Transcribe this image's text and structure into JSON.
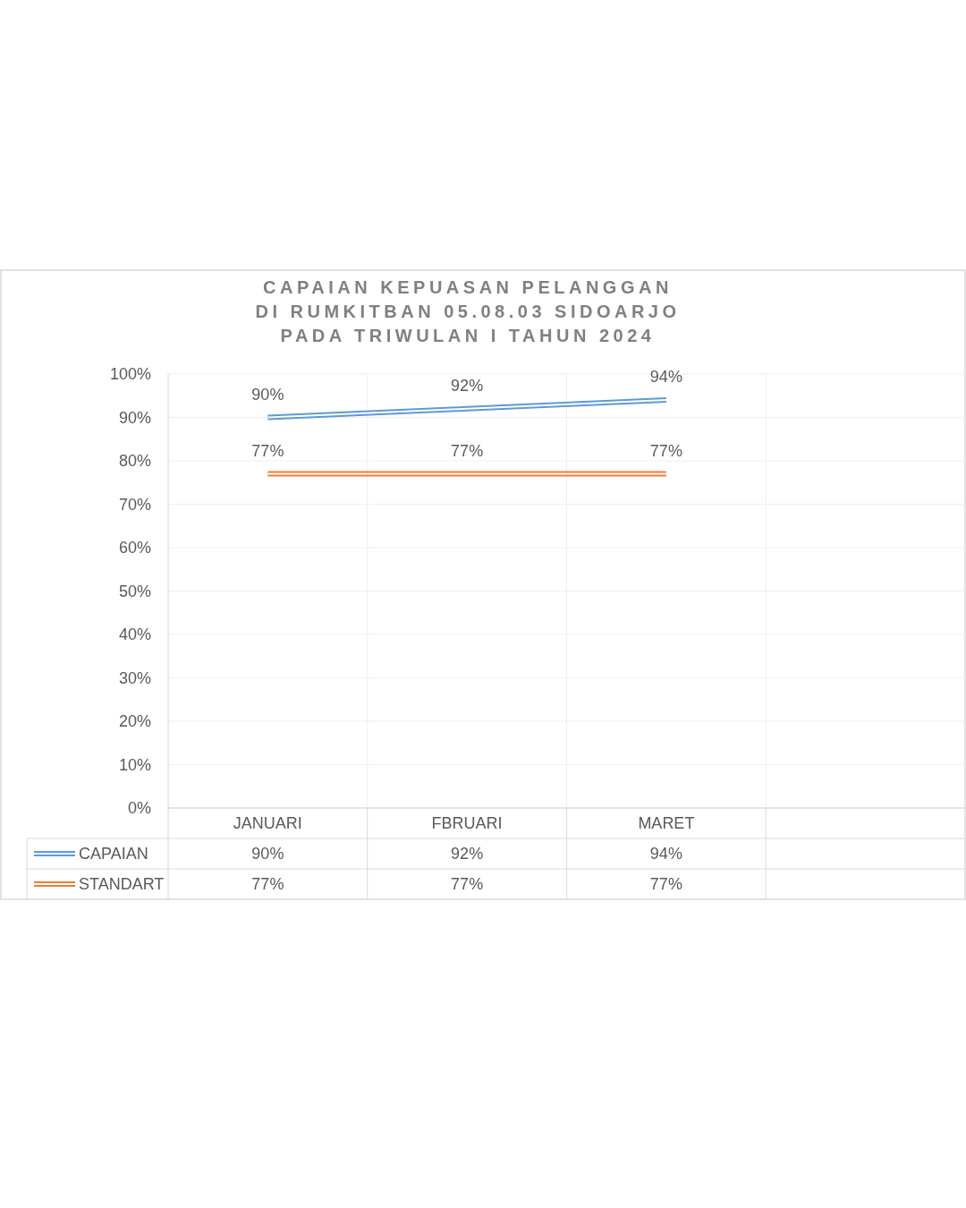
{
  "chart_data": {
    "type": "line",
    "title": "CAPAIAN KEPUASAN PELANGGAN\nDI RUMKITBAN 05.08.03 SIDOARJO\nPADA TRIWULAN I TAHUN 2024",
    "categories": [
      "JANUARI",
      "FBRUARI",
      "MARET",
      null
    ],
    "series": [
      {
        "name": "CAPAIAN",
        "color": "#5b9bd5",
        "values": [
          90,
          92,
          94,
          null
        ],
        "value_labels": [
          "90%",
          "92%",
          "94%",
          null
        ]
      },
      {
        "name": "STANDART",
        "color": "#ed7d31",
        "values": [
          77,
          77,
          77,
          null
        ],
        "value_labels": [
          "77%",
          "77%",
          "77%",
          null
        ]
      }
    ],
    "ylim": [
      0,
      100
    ],
    "yticks": [
      {
        "value": 0,
        "label": "0%"
      },
      {
        "value": 10,
        "label": "10%"
      },
      {
        "value": 20,
        "label": "20%"
      },
      {
        "value": 30,
        "label": "30%"
      },
      {
        "value": 40,
        "label": "40%"
      },
      {
        "value": 50,
        "label": "50%"
      },
      {
        "value": 60,
        "label": "60%"
      },
      {
        "value": 70,
        "label": "70%"
      },
      {
        "value": 80,
        "label": "80%"
      },
      {
        "value": 90,
        "label": "90%"
      },
      {
        "value": 100,
        "label": "100%"
      }
    ],
    "grid": true,
    "legend": "bottom"
  }
}
